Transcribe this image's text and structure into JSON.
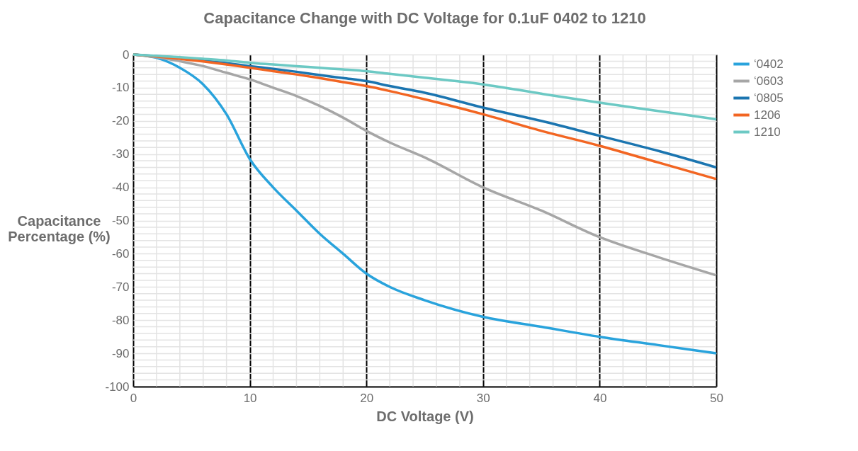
{
  "chart_data": {
    "type": "line",
    "title": "Capacitance Change with DC Voltage for 0.1uF 0402 to 1210",
    "xlabel": "DC Voltage (V)",
    "ylabel": "Capacitance Percentage (%)",
    "x": [
      0,
      2,
      4,
      6,
      8,
      10,
      12,
      14,
      16,
      18,
      20,
      22,
      25,
      30,
      35,
      40,
      45,
      50
    ],
    "series": [
      {
        "name": "‘0402",
        "color": "#29a3dc",
        "values": [
          0,
          -1,
          -4,
          -9,
          -18,
          -31.5,
          -40,
          -47,
          -54,
          -60,
          -66,
          -70,
          -74,
          -79,
          -82,
          -85,
          -87.5,
          -90
        ]
      },
      {
        "name": "‘0603",
        "color": "#a6a6a6",
        "values": [
          0,
          -0.8,
          -2,
          -3.5,
          -5.5,
          -7.5,
          -10,
          -12.5,
          -15.5,
          -19,
          -23,
          -26.5,
          -31,
          -40,
          -47,
          -55,
          -61,
          -66.5
        ]
      },
      {
        "name": "‘0805",
        "color": "#1b75b0",
        "values": [
          0,
          -0.5,
          -1,
          -1.8,
          -2.6,
          -3.5,
          -4.3,
          -5.2,
          -6.2,
          -7.1,
          -8,
          -9.5,
          -11.5,
          -16,
          -20,
          -24.5,
          -29,
          -34
        ]
      },
      {
        "name": "1206",
        "color": "#f26522",
        "values": [
          0,
          -0.6,
          -1.3,
          -2.1,
          -3,
          -4,
          -5,
          -6,
          -7.1,
          -8.3,
          -9.5,
          -11,
          -13.5,
          -18,
          -23,
          -27.5,
          -32.5,
          -37.5
        ]
      },
      {
        "name": "1210",
        "color": "#6cc9c4",
        "values": [
          0,
          -0.4,
          -0.8,
          -1.3,
          -1.8,
          -2.5,
          -3,
          -3.5,
          -4,
          -4.5,
          -5,
          -5.8,
          -7,
          -9,
          -11.8,
          -14.5,
          -17,
          -19.5
        ]
      }
    ],
    "xlim": [
      0,
      50
    ],
    "xticks": [
      0,
      10,
      20,
      30,
      40,
      50
    ],
    "ylim": [
      -100,
      0
    ],
    "yticks": [
      -100,
      -90,
      -80,
      -70,
      -60,
      -50,
      -40,
      -30,
      -20,
      -10,
      0
    ],
    "grid": true,
    "legend": "right",
    "marker": "none",
    "line_style": "solid"
  }
}
